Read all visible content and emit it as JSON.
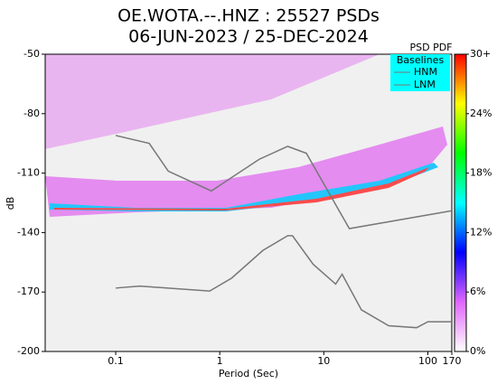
{
  "chart_data": {
    "type": "line",
    "title": "OE.WOTA.--.HNZ : 25527 PSDs",
    "subtitle": "06-JUN-2023 / 25-DEC-2024",
    "x_label": "Period (Sec)",
    "y_label": "dB",
    "x_scale": "log",
    "xlim": [
      0.021,
      170
    ],
    "ylim": [
      -200,
      -50
    ],
    "xticks": [
      0.1,
      1,
      10,
      100,
      170
    ],
    "yticks": [
      -50,
      -80,
      -110,
      -140,
      -170,
      -200
    ],
    "legend_title": "Baselines",
    "legend_position": "upper right",
    "series": [
      {
        "name": "HNM",
        "color": "#777777",
        "x": [
          0.1,
          0.21,
          0.32,
          0.83,
          2.4,
          4.5,
          6.8,
          17.6,
          170
        ],
        "values": [
          -91,
          -95,
          -109,
          -119,
          -103,
          -96.5,
          -100,
          -138,
          -129
        ]
      },
      {
        "name": "LNM",
        "color": "#777777",
        "x": [
          0.1,
          0.17,
          0.8,
          1.3,
          2.6,
          4.5,
          5,
          7.9,
          13,
          15,
          23,
          42,
          78,
          100,
          170
        ],
        "values": [
          -168,
          -167,
          -169.5,
          -163,
          -149,
          -141.6,
          -141.6,
          -156,
          -166,
          -161,
          -179,
          -187,
          -188,
          -185,
          -185
        ]
      }
    ],
    "colorbar": {
      "title": "PSD PDF",
      "lim": [
        0,
        30
      ],
      "colors": [
        "#ffffff",
        "#e066ff",
        "#0000ff",
        "#00ffff",
        "#00ff00",
        "#ffff00",
        "#ff0000"
      ],
      "ticks": [
        {
          "value": 0,
          "label": "0%"
        },
        {
          "value": 6,
          "label": "6%"
        },
        {
          "value": 12,
          "label": "12%"
        },
        {
          "value": 18,
          "label": "18%"
        },
        {
          "value": 24,
          "label": "24%"
        },
        {
          "value": 30,
          "label": "30+"
        }
      ]
    }
  }
}
